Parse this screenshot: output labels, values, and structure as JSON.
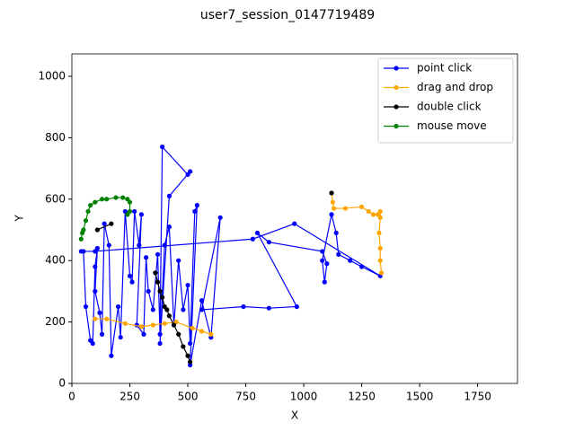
{
  "chart_data": {
    "type": "line",
    "title": "user7_session_0147719489",
    "x_label": "X",
    "y_label": "Y",
    "xlim": [
      0,
      1922
    ],
    "ylim": [
      0,
      1073
    ],
    "xticks": [
      0,
      250,
      500,
      750,
      1000,
      1250,
      1500,
      1750
    ],
    "yticks": [
      0,
      200,
      400,
      600,
      800,
      1000
    ],
    "legend": "upper right",
    "series": [
      {
        "name": "point click",
        "color": "#0000ff",
        "x": [
          50,
          60,
          80,
          90,
          100,
          110,
          100,
          120,
          130,
          140,
          160,
          170,
          200,
          210,
          230,
          250,
          260,
          270,
          290,
          300,
          280,
          310,
          320,
          330,
          350,
          370,
          380,
          390,
          500,
          510,
          420,
          380,
          400,
          420,
          440,
          460,
          480,
          500,
          510,
          530,
          540,
          510,
          560,
          600,
          640,
          560,
          740,
          850,
          970,
          800,
          850,
          1080,
          1100,
          1090,
          1080,
          1120,
          1140,
          1150,
          1200,
          1250,
          1330,
          960,
          780,
          100,
          40
        ],
        "values": [
          430,
          250,
          140,
          130,
          380,
          440,
          300,
          230,
          160,
          520,
          450,
          90,
          250,
          150,
          560,
          350,
          330,
          560,
          450,
          550,
          190,
          160,
          410,
          300,
          240,
          420,
          160,
          770,
          680,
          690,
          610,
          130,
          450,
          510,
          190,
          400,
          240,
          320,
          130,
          560,
          580,
          60,
          270,
          150,
          540,
          240,
          250,
          245,
          250,
          490,
          460,
          430,
          390,
          330,
          400,
          550,
          490,
          420,
          400,
          380,
          350,
          520,
          470,
          430,
          430
        ]
      },
      {
        "name": "drag and drop",
        "color": "#ffa500",
        "x": [
          1120,
          1125,
          1130,
          1180,
          1250,
          1280,
          1300,
          1320,
          1330,
          1330,
          1325,
          1330,
          1330,
          1335,
          null,
          100,
          150,
          230,
          300,
          350,
          400,
          450,
          520,
          560,
          600
        ],
        "values": [
          620,
          590,
          570,
          570,
          575,
          560,
          550,
          550,
          560,
          540,
          490,
          440,
          400,
          360,
          null,
          210,
          210,
          195,
          185,
          190,
          195,
          200,
          180,
          170,
          160
        ]
      },
      {
        "name": "double click",
        "color": "#000000",
        "x": [
          110,
          170,
          null,
          360,
          370,
          380,
          390,
          400,
          410,
          420,
          440,
          460,
          480,
          500,
          510,
          null,
          1120
        ],
        "values": [
          500,
          520,
          null,
          360,
          330,
          300,
          280,
          250,
          240,
          220,
          190,
          160,
          120,
          90,
          70,
          null,
          620
        ]
      },
      {
        "name": "mouse move",
        "color": "#008000",
        "x": [
          40,
          45,
          50,
          60,
          70,
          80,
          100,
          130,
          150,
          190,
          220,
          240,
          250,
          250,
          240
        ],
        "values": [
          470,
          490,
          500,
          530,
          560,
          580,
          590,
          600,
          600,
          605,
          605,
          600,
          590,
          560,
          550
        ]
      }
    ]
  }
}
